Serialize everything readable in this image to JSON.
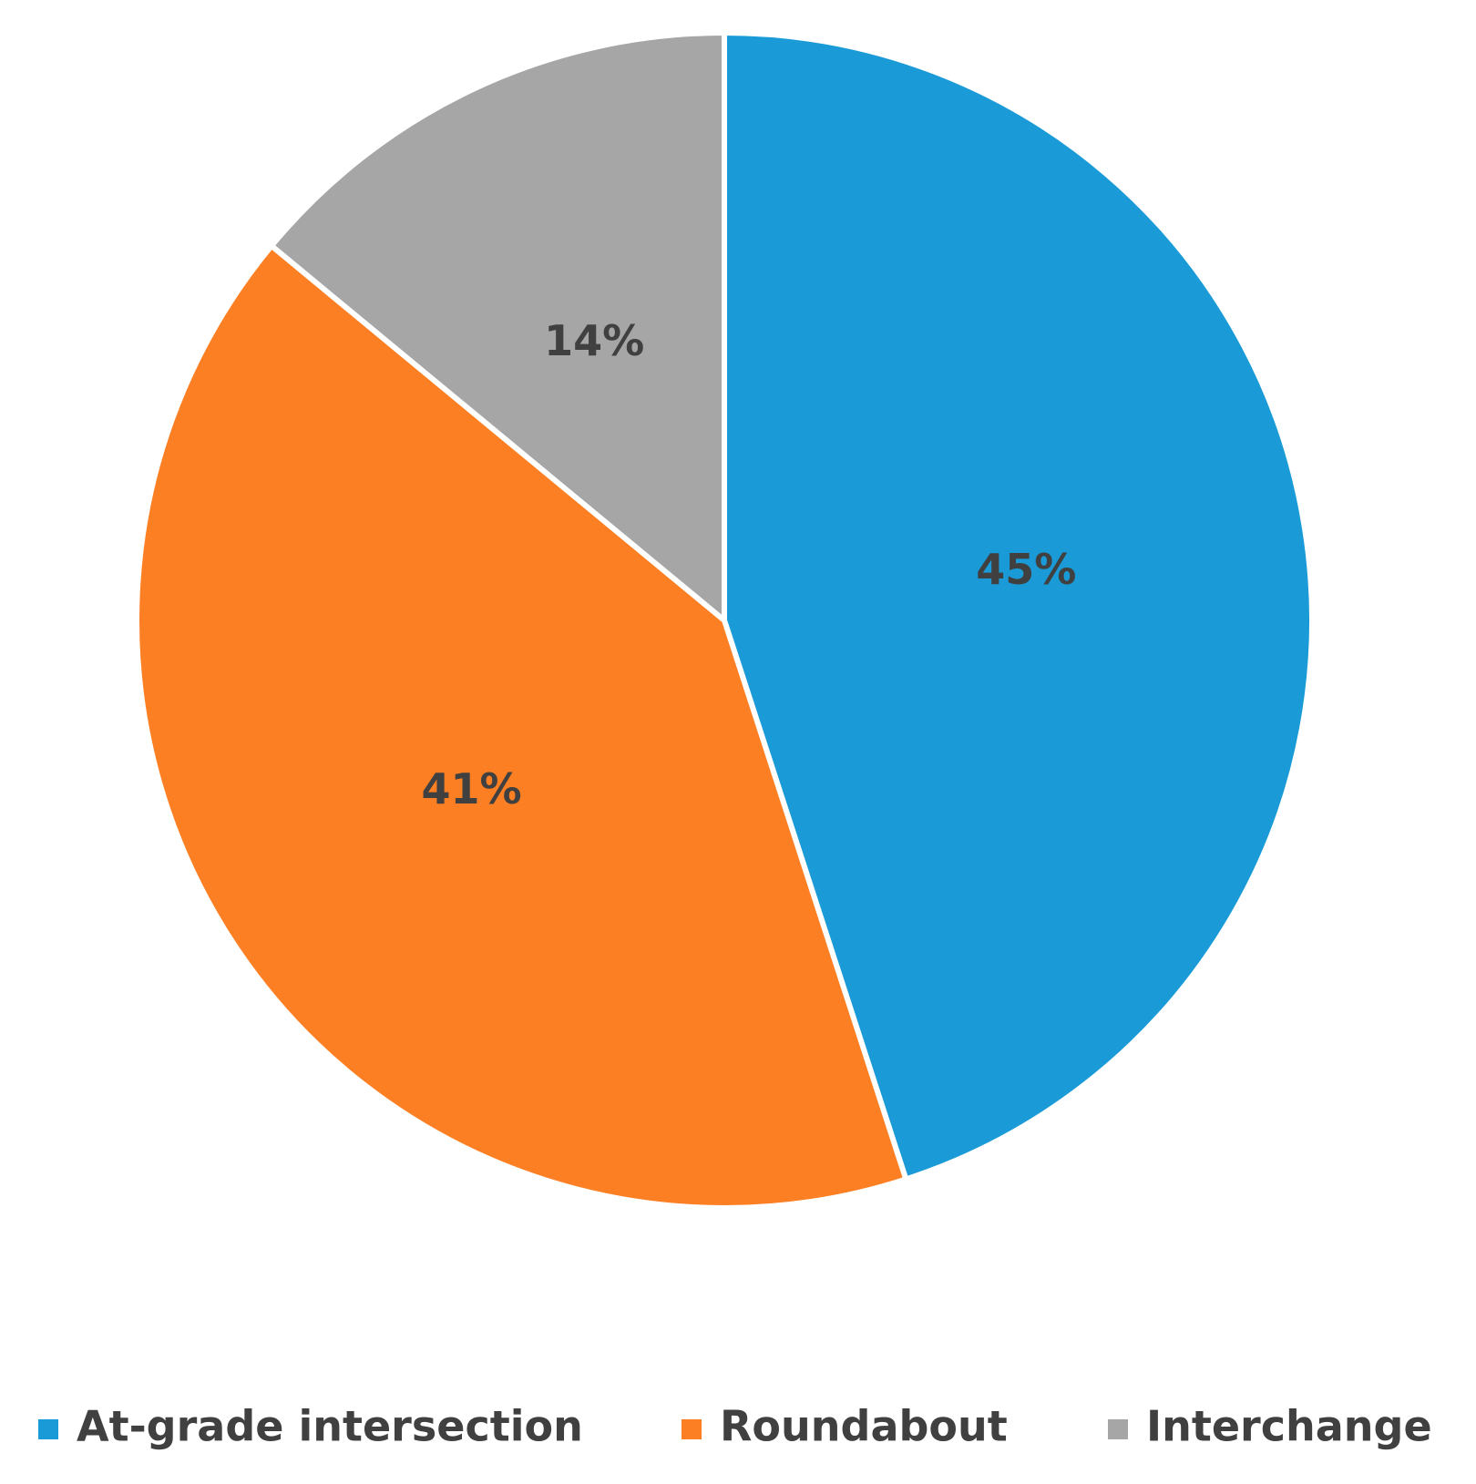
{
  "chart_data": {
    "type": "pie",
    "categories": [
      "At-grade intersection",
      "Roundabout",
      "Interchange"
    ],
    "values": [
      45,
      41,
      14
    ],
    "value_labels": [
      "45%",
      "41%",
      "14%"
    ],
    "colors": [
      "#1a9bd7",
      "#fd7f23",
      "#a6a6a6"
    ],
    "legend": "bottom"
  }
}
